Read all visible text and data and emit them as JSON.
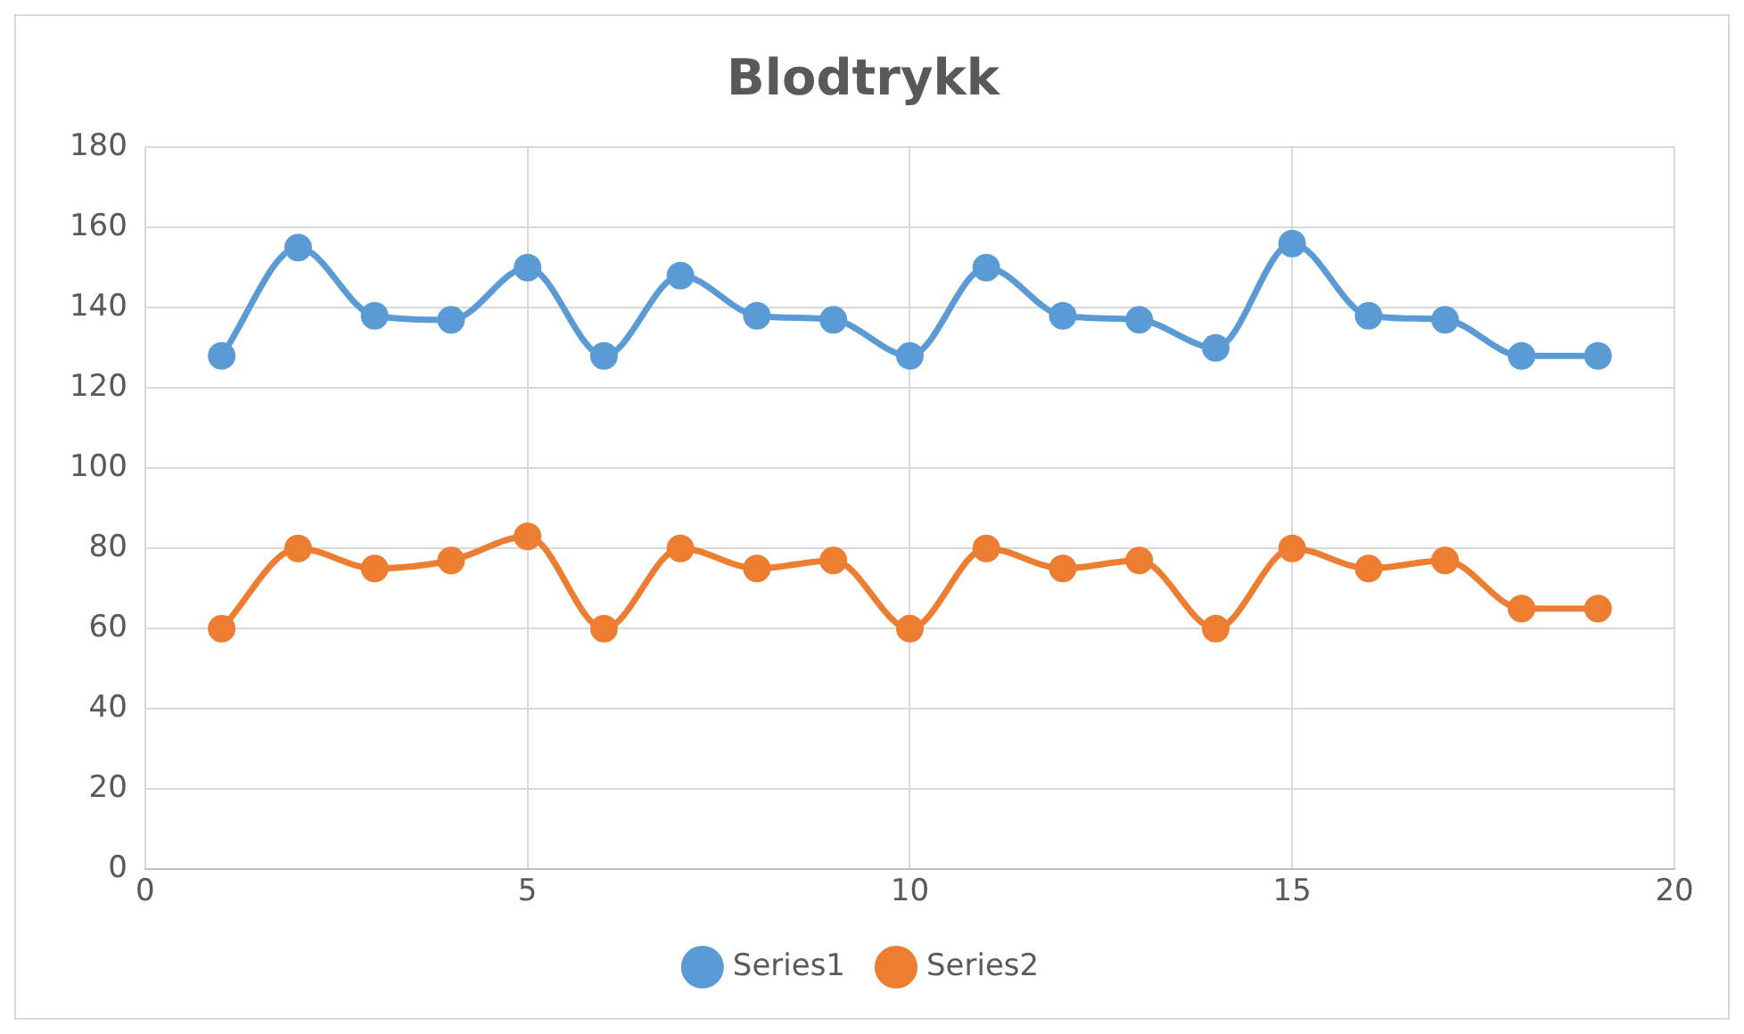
{
  "chart_data": {
    "type": "line",
    "title": "Blodtrykk",
    "x": [
      1,
      2,
      3,
      4,
      5,
      6,
      7,
      8,
      9,
      10,
      11,
      12,
      13,
      14,
      15,
      16,
      17,
      18,
      19
    ],
    "series": [
      {
        "name": "Series1",
        "color": "#5b9bd5",
        "values": [
          128,
          155,
          138,
          137,
          150,
          128,
          148,
          138,
          137,
          128,
          150,
          138,
          137,
          130,
          156,
          138,
          137,
          128,
          128
        ]
      },
      {
        "name": "Series2",
        "color": "#ed7d31",
        "values": [
          60,
          80,
          75,
          77,
          83,
          60,
          80,
          75,
          77,
          60,
          80,
          75,
          77,
          60,
          80,
          75,
          77,
          65,
          65
        ]
      }
    ],
    "xlim": [
      0,
      20
    ],
    "xticks": [
      0,
      5,
      10,
      15,
      20
    ],
    "ylim": [
      0,
      180
    ],
    "yticks": [
      0,
      20,
      40,
      60,
      80,
      100,
      120,
      140,
      160,
      180
    ],
    "grid": true,
    "legend": "bottom",
    "marker": "circle",
    "line_style": "solid"
  }
}
